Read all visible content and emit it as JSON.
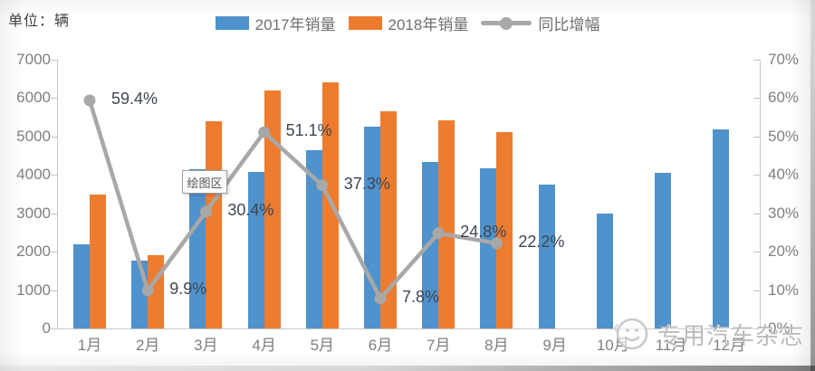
{
  "header": {
    "unit_label": "单位：辆"
  },
  "legend": [
    {
      "label": "2017年销量",
      "color": "#4f92cc",
      "type": "bar"
    },
    {
      "label": "2018年销量",
      "color": "#ed7c2f",
      "type": "bar"
    },
    {
      "label": "同比增幅",
      "color": "#a8a8a8",
      "type": "line"
    }
  ],
  "tooltip": {
    "label": "绘图区"
  },
  "watermark": {
    "text": "专用汽车杂志"
  },
  "chart_data": {
    "type": "combo-bar-line",
    "title": "",
    "unit": "辆",
    "categories": [
      "1月",
      "2月",
      "3月",
      "4月",
      "5月",
      "6月",
      "7月",
      "8月",
      "9月",
      "10月",
      "11月",
      "12月"
    ],
    "series": [
      {
        "name": "2017年销量",
        "type": "bar",
        "axis": "left",
        "color": "#4f92cc",
        "values": [
          2200,
          1760,
          4140,
          4080,
          4650,
          5250,
          4330,
          4180,
          3740,
          3000,
          4050,
          5180
        ]
      },
      {
        "name": "2018年销量",
        "type": "bar",
        "axis": "left",
        "color": "#ed7c2f",
        "values": [
          3500,
          1920,
          5400,
          6200,
          6400,
          5660,
          5430,
          5110,
          null,
          null,
          null,
          null
        ]
      },
      {
        "name": "同比增幅",
        "type": "line",
        "axis": "right",
        "color": "#a8a8a8",
        "values": [
          59.4,
          9.9,
          30.4,
          51.1,
          37.3,
          7.8,
          24.8,
          22.2,
          null,
          null,
          null,
          null
        ],
        "labels": [
          "59.4%",
          "9.9%",
          "30.4%",
          "51.1%",
          "37.3%",
          "7.8%",
          "24.8%",
          "22.2%",
          null,
          null,
          null,
          null
        ]
      }
    ],
    "left_axis": {
      "min": 0,
      "max": 7000,
      "step": 1000,
      "tick_labels": [
        "0",
        "1000",
        "2000",
        "3000",
        "4000",
        "5000",
        "6000",
        "7000"
      ]
    },
    "right_axis": {
      "min": 0,
      "max": 70,
      "step": 10,
      "suffix": "%",
      "tick_labels": [
        "0%",
        "10%",
        "20%",
        "30%",
        "40%",
        "50%",
        "60%",
        "70%"
      ]
    },
    "grid": false,
    "legend_position": "top"
  }
}
